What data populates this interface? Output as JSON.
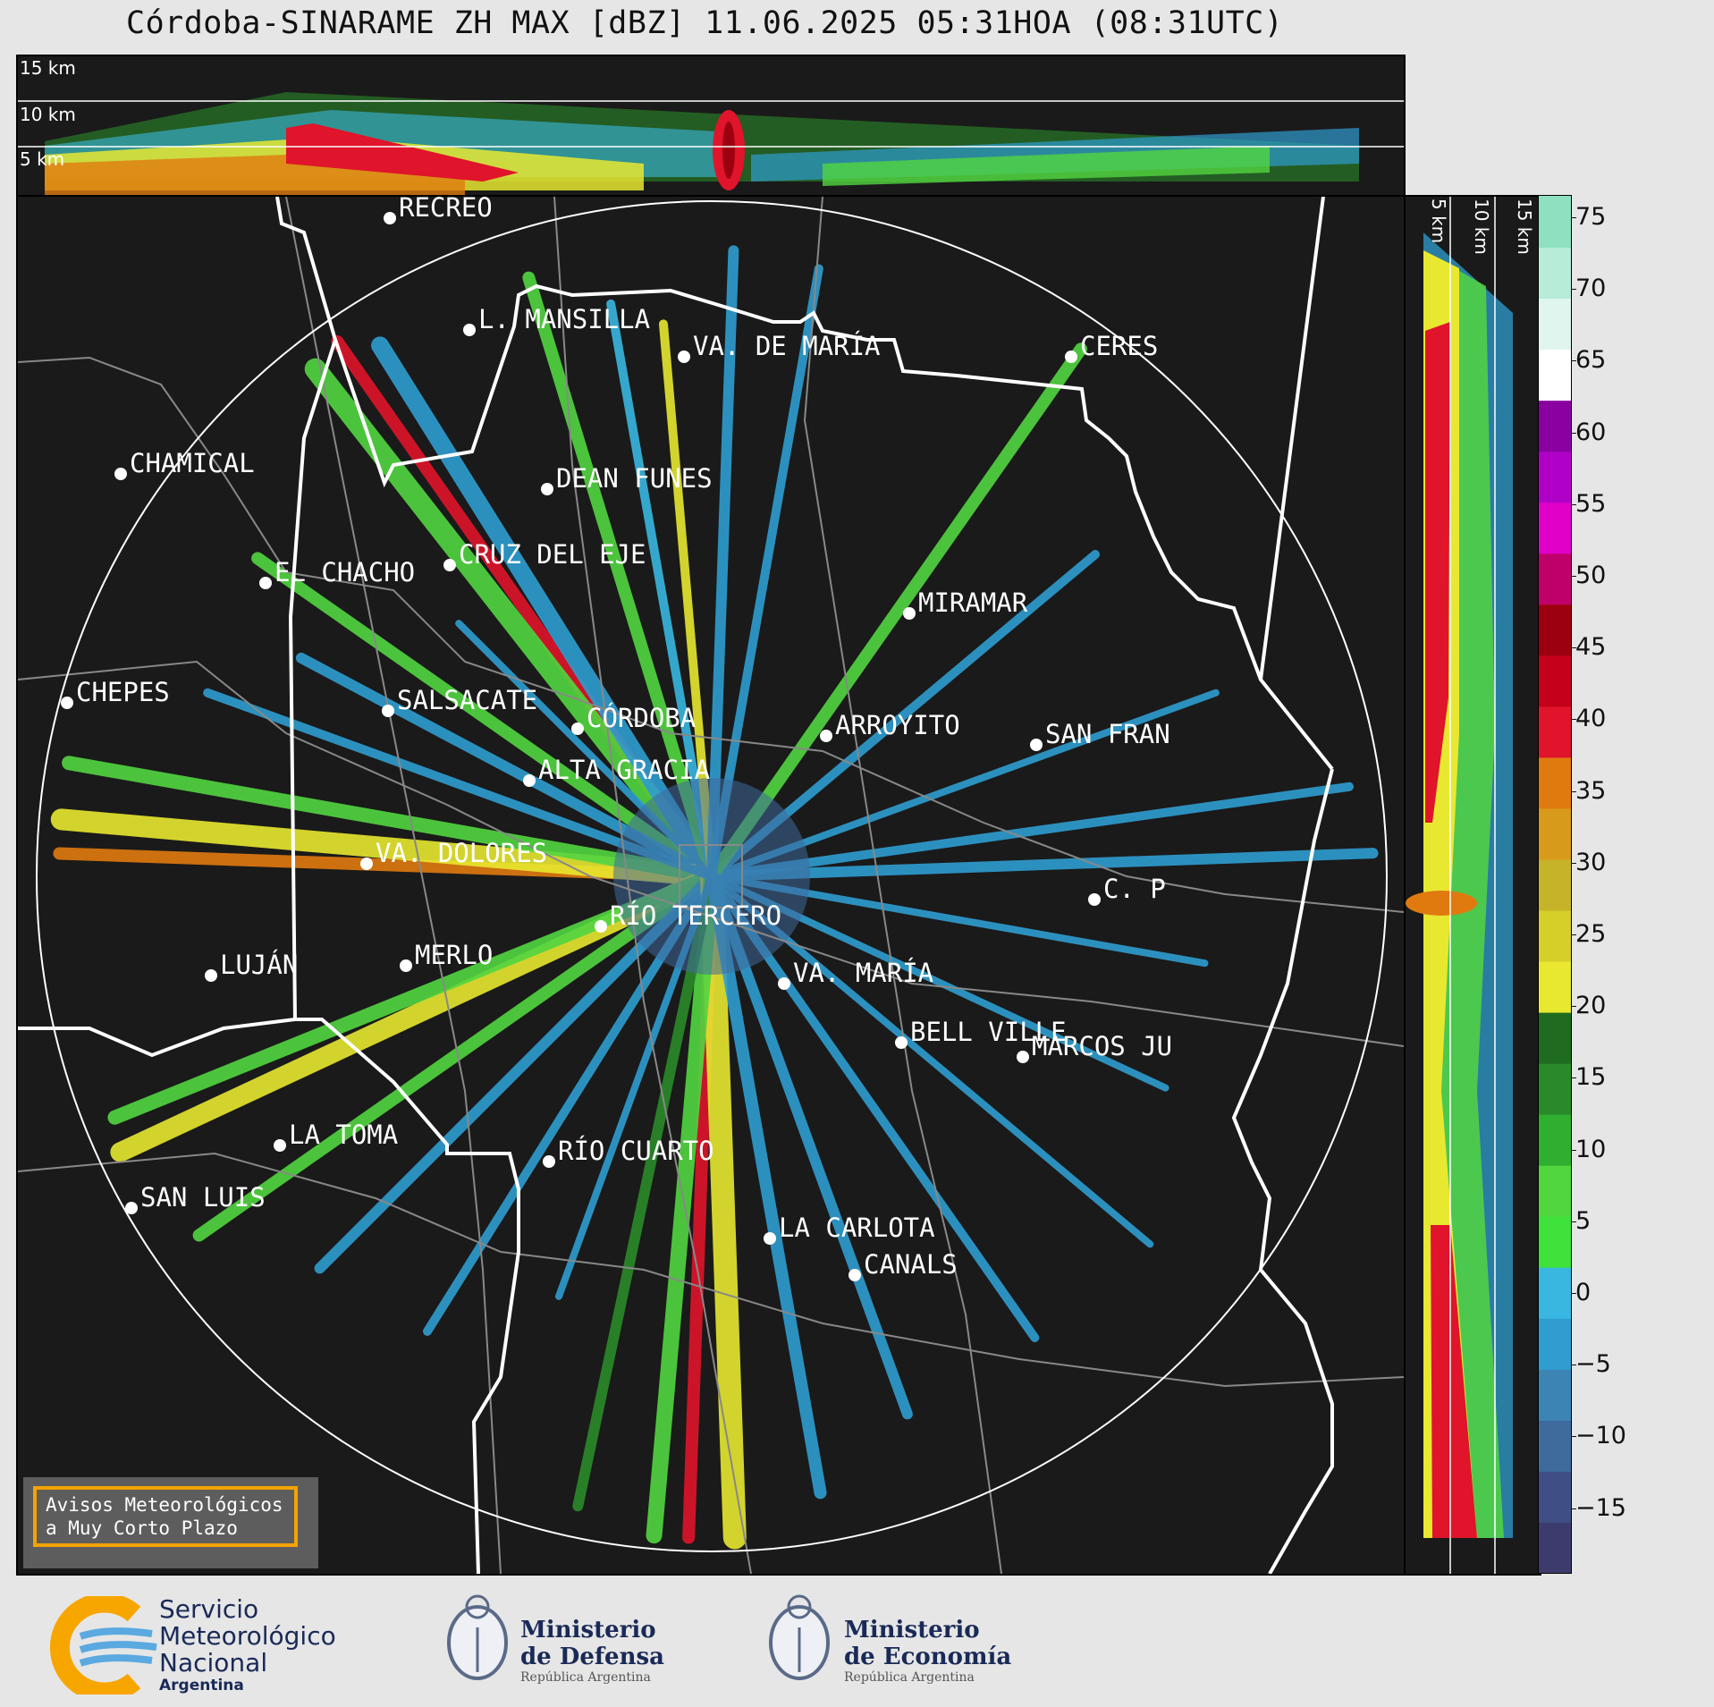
{
  "title": "Córdoba-SINARAME ZH MAX [dBZ] 11.06.2025 05:31HOA (08:31UTC)",
  "height_labels_top": [
    "15 km",
    "10 km",
    "5 km"
  ],
  "height_labels_side": [
    "5 km",
    "10 km",
    "15 km"
  ],
  "colorbar": {
    "ticks": [
      "75",
      "70",
      "65",
      "60",
      "55",
      "50",
      "45",
      "40",
      "35",
      "30",
      "25",
      "20",
      "15",
      "10",
      "5",
      "0",
      "−5",
      "−10",
      "−15"
    ],
    "colors": [
      "#3d3b6e",
      "#3f4f86",
      "#3f6a9c",
      "#3b84b4",
      "#2f9dd0",
      "#3ab7e0",
      "#3ee23a",
      "#52d640",
      "#2fae2f",
      "#2a8a2a",
      "#1f6b1f",
      "#e8e830",
      "#d6cf2a",
      "#c7b32a",
      "#d89a1a",
      "#e07a0f",
      "#e0142a",
      "#c4001a",
      "#9c0010",
      "#c0006a",
      "#e000c8",
      "#b000c8",
      "#8a00a0",
      "#ffffff",
      "#dff5ee",
      "#b6ecd8",
      "#8ee0c0"
    ]
  },
  "cities": [
    {
      "name": "RECREO"
    },
    {
      "name": "L. MANSILLA"
    },
    {
      "name": "VA. DE MARÍA"
    },
    {
      "name": "CERES"
    },
    {
      "name": "CHAMICAL"
    },
    {
      "name": "DEAN FUNES"
    },
    {
      "name": "CRUZ DEL EJE"
    },
    {
      "name": "EL CHACHO"
    },
    {
      "name": "MIRAMAR"
    },
    {
      "name": "CHEPES"
    },
    {
      "name": "SALSACATE"
    },
    {
      "name": "CÓRDOBA"
    },
    {
      "name": "ARROYITO"
    },
    {
      "name": "SAN FRAN"
    },
    {
      "name": "ALTA GRACIA"
    },
    {
      "name": "VA. DOLORES"
    },
    {
      "name": "C. P"
    },
    {
      "name": "RÍO TERCERO"
    },
    {
      "name": "LUJÁN"
    },
    {
      "name": "MERLO"
    },
    {
      "name": "VA. MARÍA"
    },
    {
      "name": "BELL VILLE"
    },
    {
      "name": "MARCOS JU"
    },
    {
      "name": "LA TOMA"
    },
    {
      "name": "RÍO CUARTO"
    },
    {
      "name": "SAN LUIS"
    },
    {
      "name": "LA CARLOTA"
    },
    {
      "name": "CANALS"
    }
  ],
  "notice": {
    "line1": "Avisos Meteorológicos",
    "line2": "a Muy Corto Plazo"
  },
  "logos": {
    "smn": {
      "line1": "Servicio",
      "line2": "Meteorológico",
      "line3": "Nacional",
      "line4": "Argentina"
    },
    "defensa": {
      "line1": "Ministerio",
      "line2": "de Defensa",
      "line3": "República Argentina"
    },
    "economia": {
      "line1": "Ministerio",
      "line2": "de Economía",
      "line3": "República Argentina"
    }
  }
}
